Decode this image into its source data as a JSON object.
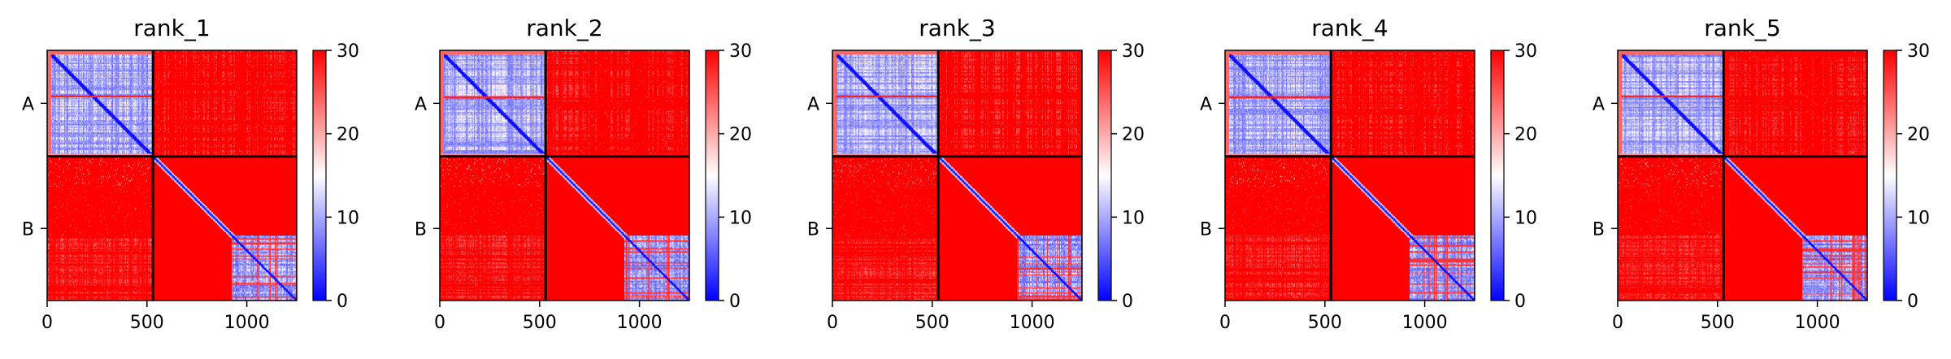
{
  "colorbar": {
    "ticks": [
      0,
      10,
      20,
      30
    ],
    "range": [
      0,
      30
    ],
    "colors": {
      "low": "#0000ff",
      "mid": "#ffffff",
      "high": "#ff0000"
    }
  },
  "chart_data": [
    {
      "type": "heatmap",
      "title": "rank_1",
      "x_ticks": [
        0,
        500,
        1000
      ],
      "xlim": [
        0,
        1250
      ],
      "ylim": [
        0,
        1250
      ],
      "chain_labels": [
        "A",
        "B"
      ],
      "chain_boundary": 530,
      "value_range": [
        0,
        30
      ],
      "colormap": "bwr"
    },
    {
      "type": "heatmap",
      "title": "rank_2",
      "x_ticks": [
        0,
        500,
        1000
      ],
      "xlim": [
        0,
        1250
      ],
      "ylim": [
        0,
        1250
      ],
      "chain_labels": [
        "A",
        "B"
      ],
      "chain_boundary": 530,
      "value_range": [
        0,
        30
      ],
      "colormap": "bwr"
    },
    {
      "type": "heatmap",
      "title": "rank_3",
      "x_ticks": [
        0,
        500,
        1000
      ],
      "xlim": [
        0,
        1250
      ],
      "ylim": [
        0,
        1250
      ],
      "chain_labels": [
        "A",
        "B"
      ],
      "chain_boundary": 530,
      "value_range": [
        0,
        30
      ],
      "colormap": "bwr"
    },
    {
      "type": "heatmap",
      "title": "rank_4",
      "x_ticks": [
        0,
        500,
        1000
      ],
      "xlim": [
        0,
        1250
      ],
      "ylim": [
        0,
        1250
      ],
      "chain_labels": [
        "A",
        "B"
      ],
      "chain_boundary": 530,
      "value_range": [
        0,
        30
      ],
      "colormap": "bwr"
    },
    {
      "type": "heatmap",
      "title": "rank_5",
      "x_ticks": [
        0,
        500,
        1000
      ],
      "xlim": [
        0,
        1250
      ],
      "ylim": [
        0,
        1250
      ],
      "chain_labels": [
        "A",
        "B"
      ],
      "chain_boundary": 530,
      "value_range": [
        0,
        30
      ],
      "colormap": "bwr"
    }
  ]
}
